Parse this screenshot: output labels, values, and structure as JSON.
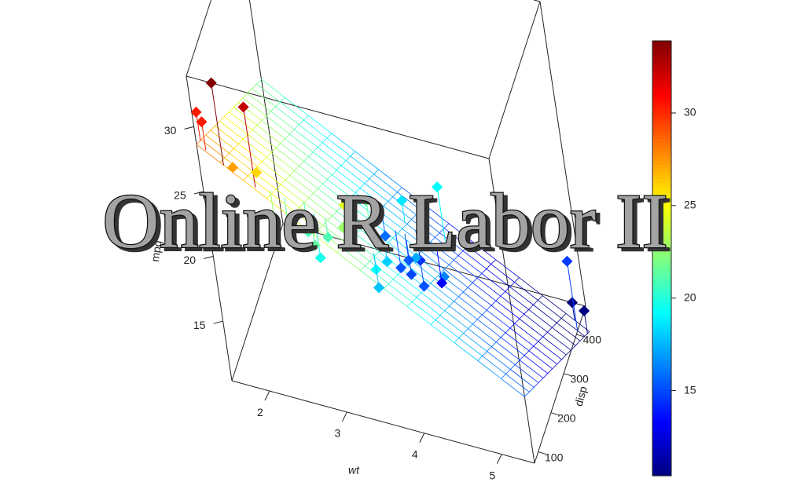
{
  "chart_data": {
    "type": "scatter3d",
    "overlay_title": "Online R Labor II",
    "xlabel": "wt",
    "ylabel": "disp",
    "zlabel": "mpg",
    "x": [
      2.62,
      2.875,
      2.32,
      3.215,
      3.44,
      3.46,
      3.57,
      3.19,
      3.15,
      3.44,
      3.44,
      4.07,
      3.73,
      3.78,
      5.25,
      5.424,
      5.345,
      2.2,
      1.615,
      1.835,
      2.465,
      3.52,
      3.435,
      3.84,
      3.845,
      1.935,
      2.14,
      1.513,
      3.17,
      2.77,
      3.57,
      2.78
    ],
    "y": [
      160,
      160,
      108,
      258,
      360,
      225,
      360,
      146.7,
      140.8,
      167.6,
      167.6,
      275.8,
      275.8,
      275.8,
      472,
      460,
      440,
      78.7,
      75.7,
      71.1,
      120.1,
      318,
      304,
      350,
      400,
      79,
      120.3,
      95.1,
      351,
      145,
      301,
      121
    ],
    "z": [
      21.0,
      21.0,
      22.8,
      21.4,
      18.7,
      18.1,
      14.3,
      24.4,
      22.8,
      19.2,
      17.8,
      16.4,
      17.3,
      15.2,
      10.4,
      10.4,
      14.7,
      32.4,
      30.4,
      33.9,
      21.5,
      15.5,
      15.2,
      13.3,
      19.2,
      27.3,
      26.0,
      30.4,
      15.8,
      19.7,
      15.0,
      21.4
    ],
    "xlim": [
      1.513,
      5.424
    ],
    "ylim": [
      71.1,
      472
    ],
    "zlim": [
      10.4,
      33.9
    ],
    "xticks": [
      2,
      3,
      4,
      5
    ],
    "yticks": [
      100,
      200,
      300,
      400
    ],
    "zticks": [
      15,
      20,
      25,
      30
    ],
    "colormap": "jet",
    "colorbar_ticks": [
      15,
      20,
      25,
      30
    ],
    "surface": {
      "intercept": 34.96,
      "wt": -3.35,
      "disp": -0.0177
    }
  }
}
